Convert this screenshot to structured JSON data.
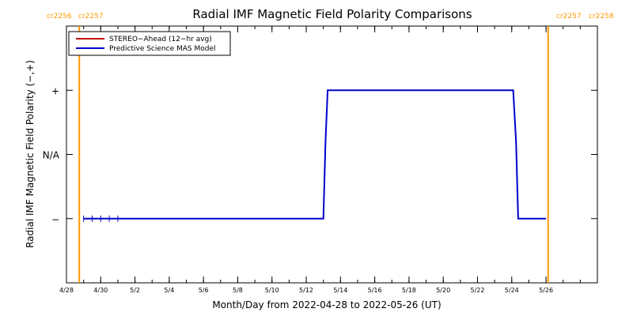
{
  "chart_data": {
    "type": "line",
    "title": "Radial IMF Magnetic Field Polarity Comparisons",
    "xlabel": "Month/Day from 2022-04-28 to 2022-05-26 (UT)",
    "ylabel": "Radial IMF Magnetic Field Polarity (−,+)",
    "xlim": [
      "2022-04-28",
      "2022-05-29"
    ],
    "ylim": [
      -2,
      2
    ],
    "x_tick_labels": [
      "4/28",
      "4/30",
      "5/2",
      "5/4",
      "5/6",
      "5/8",
      "5/10",
      "5/12",
      "5/14",
      "5/16",
      "5/18",
      "5/20",
      "5/22",
      "5/24",
      "5/26"
    ],
    "y_ticks": [
      {
        "value": 1,
        "label": "+"
      },
      {
        "value": 0,
        "label": "N/A"
      },
      {
        "value": -1,
        "label": "−"
      }
    ],
    "carrington_markers": [
      {
        "date": "2022-04-28 18:00",
        "left_label": "cr2256",
        "right_label": "cr2257",
        "side": "left"
      },
      {
        "date": "2022-05-26 03:00",
        "left_label": "cr2257",
        "right_label": "cr2258",
        "side": "right"
      }
    ],
    "legend": {
      "position": "top-left",
      "entries": [
        {
          "name": "STEREO−Ahead (12−hr avg)",
          "color": "#c00000"
        },
        {
          "name": "Predictive Science MAS Model",
          "color": "#0000cc"
        }
      ]
    },
    "series": [
      {
        "name": "Predictive Science MAS Model",
        "color": "#0000cc",
        "points": [
          [
            "2022-04-29 00:00",
            -1
          ],
          [
            "2022-05-13 00:00",
            -1
          ],
          [
            "2022-05-13 03:00",
            0.2
          ],
          [
            "2022-05-13 06:00",
            1
          ],
          [
            "2022-05-24 02:00",
            1
          ],
          [
            "2022-05-24 06:00",
            0.2
          ],
          [
            "2022-05-24 09:00",
            -1
          ],
          [
            "2022-05-26 00:00",
            -1
          ]
        ],
        "markers": [
          "2022-04-29 00:00",
          "2022-04-29 12:00",
          "2022-04-30 00:00",
          "2022-04-30 12:00",
          "2022-05-01 00:00"
        ]
      }
    ],
    "colors": {
      "carrington_line": "#ff9900",
      "carrington_text": "#ff9900",
      "model": "#0000cc",
      "stereo": "#c00000"
    }
  }
}
